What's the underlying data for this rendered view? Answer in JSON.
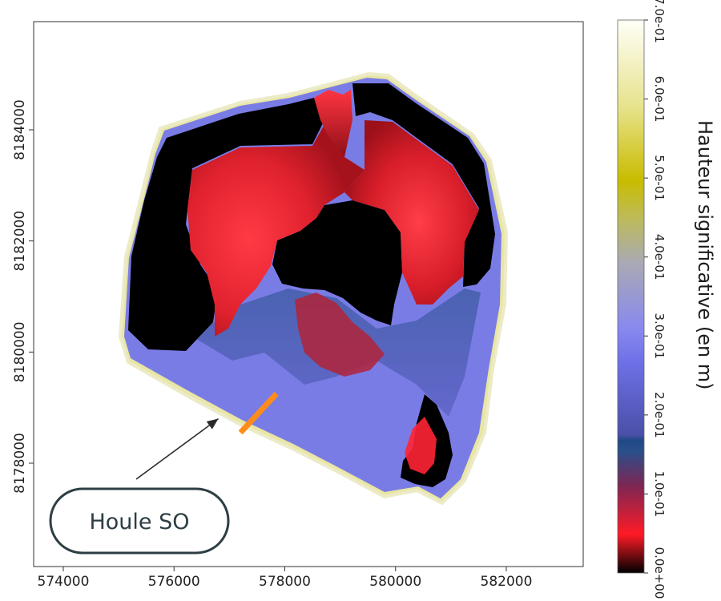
{
  "chart_data": {
    "type": "heatmap",
    "title": "",
    "xlabel": "",
    "ylabel": "",
    "xlim": [
      573500,
      583500
    ],
    "ylim": [
      8176400,
      8186000
    ],
    "x_ticks": [
      574000,
      576000,
      578000,
      580000,
      582000
    ],
    "x_tick_labels": [
      "574000",
      "576000",
      "578000",
      "580000",
      "582000"
    ],
    "y_ticks": [
      8178000,
      8180000,
      8182000,
      8184000
    ],
    "y_tick_labels": [
      "8178000",
      "8180000",
      "8182000",
      "8184000"
    ],
    "colorbar": {
      "label": "Hauteur significative (en m)",
      "range": [
        0.0,
        0.7
      ],
      "ticks": [
        0.0,
        0.1,
        0.2,
        0.3,
        0.4,
        0.5,
        0.6,
        0.7
      ],
      "tick_labels": [
        "0.0e+00",
        "1.0e-01",
        "2.0e-01",
        "3.0e-01",
        "4.0e-01",
        "5.0e-01",
        "6.0e-01",
        "7.0e-01"
      ],
      "colors": [
        "#000000",
        "#ff1f2c",
        "#2b4e84",
        "#7c7ef2",
        "#bdbdbd",
        "#c4b800",
        "#fffff6"
      ]
    },
    "annotation": {
      "text": "Houle SO",
      "arrow_to": [
        576800,
        8178800
      ]
    },
    "marker_segment": {
      "from": [
        577200,
        8178550
      ],
      "to": [
        577850,
        8179250
      ],
      "color": "#ff8c1a"
    },
    "colors": {
      "lagoon": "#7a7ce6",
      "deep_shadow": "#000000",
      "wave_red": "#ff2030",
      "shore_yellow": "#e8e49a"
    }
  }
}
